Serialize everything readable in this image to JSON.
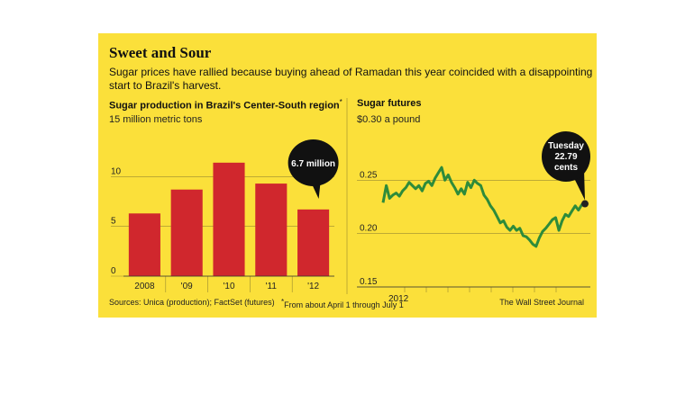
{
  "header": {
    "title": "Sweet and Sour",
    "subtitle": "Sugar prices have rallied because buying ahead of Ramadan this year coincided with a disappointing start to Brazil's harvest."
  },
  "footer": {
    "sources": "Sources: Unica (production); FactSet (futures)",
    "footnote_mark": "*",
    "footnote": "From about April 1 through July 1",
    "credit": "The Wall Street Journal"
  },
  "colors": {
    "background": "#fbe03a",
    "bar": "#d0272d",
    "line": "#2e8b3a",
    "callout": "#111111"
  },
  "chart_data": [
    {
      "type": "bar",
      "title": "Sugar production in Brazil's Center-South region",
      "title_mark": "*",
      "unit_label": "15 million metric tons",
      "categories": [
        "2008",
        "'09",
        "'10",
        "'11",
        "'12"
      ],
      "values": [
        6.3,
        8.7,
        11.4,
        9.3,
        6.7
      ],
      "ylim": [
        0,
        15
      ],
      "yticks": [
        "0",
        "5",
        "10"
      ],
      "callout": "6.7 million",
      "grid": true
    },
    {
      "type": "line",
      "title": "Sugar futures",
      "unit_label": "$0.30 a pound",
      "ylim": [
        0.15,
        0.3
      ],
      "yticks": [
        "0.15",
        "0.20",
        "0.25"
      ],
      "xlabel": "2012",
      "callout": [
        "Tuesday",
        "22.79",
        "cents"
      ],
      "series": [
        {
          "values": [
            0.229,
            0.245,
            0.233,
            0.236,
            0.238,
            0.235,
            0.24,
            0.243,
            0.248,
            0.245,
            0.242,
            0.245,
            0.24,
            0.247,
            0.249,
            0.245,
            0.252,
            0.257,
            0.262,
            0.25,
            0.255,
            0.248,
            0.243,
            0.237,
            0.242,
            0.237,
            0.248,
            0.243,
            0.25,
            0.247,
            0.245,
            0.236,
            0.232,
            0.226,
            0.222,
            0.216,
            0.21,
            0.212,
            0.206,
            0.203,
            0.207,
            0.203,
            0.205,
            0.198,
            0.197,
            0.194,
            0.19,
            0.188,
            0.196,
            0.202,
            0.205,
            0.209,
            0.213,
            0.215,
            0.203,
            0.212,
            0.218,
            0.216,
            0.221,
            0.226,
            0.222,
            0.227,
            0.2279
          ]
        }
      ]
    }
  ]
}
